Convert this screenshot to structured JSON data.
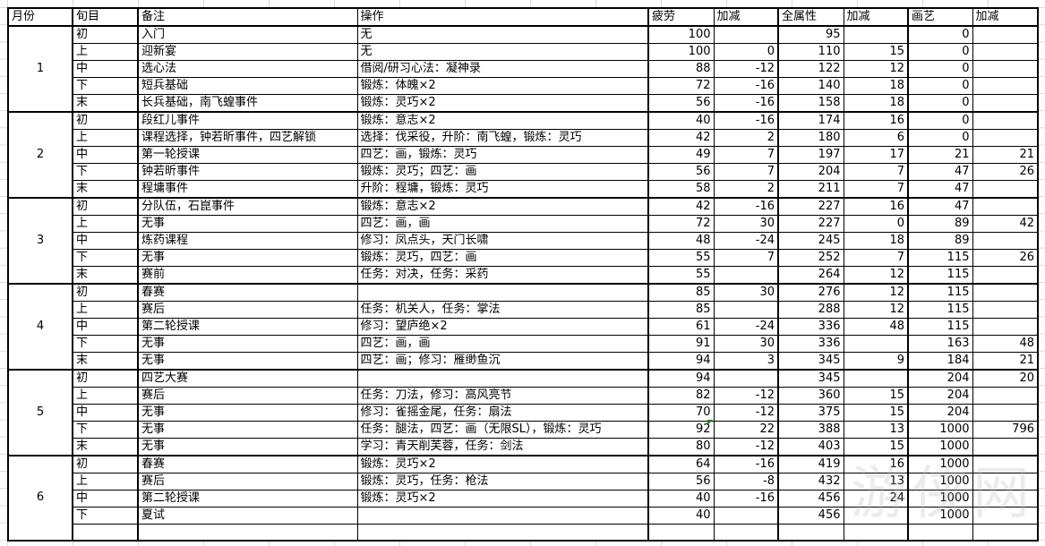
{
  "headers": [
    "月份",
    "旬目",
    "备注",
    "操作",
    "疲劳",
    "加减",
    "全属性",
    "加减",
    "画艺",
    "加减"
  ],
  "months": [
    {
      "month": "1",
      "rows": [
        [
          "初",
          "入门",
          "无",
          "100",
          "",
          "95",
          "",
          "0",
          ""
        ],
        [
          "上",
          "迎新宴",
          "无",
          "100",
          "0",
          "110",
          "15",
          "0",
          ""
        ],
        [
          "中",
          "选心法",
          "借阅/研习心法：凝神录",
          "88",
          "-12",
          "122",
          "12",
          "0",
          ""
        ],
        [
          "下",
          "短兵基础",
          "锻炼：体魄×2",
          "72",
          "-16",
          "140",
          "18",
          "0",
          ""
        ],
        [
          "末",
          "长兵基础，南飞蝗事件",
          "锻炼：灵巧×2",
          "56",
          "-16",
          "158",
          "18",
          "0",
          ""
        ]
      ]
    },
    {
      "month": "2",
      "rows": [
        [
          "初",
          "段红儿事件",
          "锻炼：意志×2",
          "40",
          "-16",
          "174",
          "16",
          "0",
          ""
        ],
        [
          "上",
          "课程选择，钟若昕事件，四艺解锁",
          "选择：伐采役，升阶：南飞蝗，锻炼：灵巧",
          "42",
          "2",
          "180",
          "6",
          "0",
          ""
        ],
        [
          "中",
          "第一轮授课",
          "四艺：画，锻炼：灵巧",
          "49",
          "7",
          "197",
          "17",
          "21",
          "21"
        ],
        [
          "下",
          "钟若昕事件",
          "锻炼：灵巧；四艺：画",
          "56",
          "7",
          "204",
          "7",
          "47",
          "26"
        ],
        [
          "末",
          "程墉事件",
          "升阶：程墉，锻炼：灵巧",
          "58",
          "2",
          "211",
          "7",
          "47",
          ""
        ]
      ]
    },
    {
      "month": "3",
      "rows": [
        [
          "初",
          "分队伍，石崑事件",
          "锻炼：意志×2",
          "42",
          "-16",
          "227",
          "16",
          "47",
          ""
        ],
        [
          "上",
          "无事",
          "四艺：画，画",
          "72",
          "30",
          "227",
          "0",
          "89",
          "42"
        ],
        [
          "中",
          "炼药课程",
          "修习：凤点头，天门长啸",
          "48",
          "-24",
          "245",
          "18",
          "89",
          ""
        ],
        [
          "下",
          "无事",
          "锻炼：灵巧，四艺：画",
          "55",
          "7",
          "252",
          "7",
          "115",
          "26"
        ],
        [
          "末",
          "赛前",
          "任务：对决，任务：采药",
          "55",
          "",
          "264",
          "12",
          "115",
          ""
        ]
      ]
    },
    {
      "month": "4",
      "rows": [
        [
          "初",
          "春赛",
          "",
          "85",
          "30",
          "276",
          "12",
          "115",
          ""
        ],
        [
          "上",
          "赛后",
          "任务：机关人，任务：掌法",
          "85",
          "",
          "288",
          "12",
          "115",
          ""
        ],
        [
          "中",
          "第二轮授课",
          "修习：望庐绝×2",
          "61",
          "-24",
          "336",
          "48",
          "115",
          ""
        ],
        [
          "下",
          "无事",
          "四艺：画，画",
          "91",
          "30",
          "336",
          "",
          "163",
          "48"
        ],
        [
          "末",
          "无事",
          "四艺：画；修习：雁缈鱼沉",
          "94",
          "3",
          "345",
          "9",
          "184",
          "21"
        ]
      ]
    },
    {
      "month": "5",
      "rows": [
        [
          "初",
          "四艺大赛",
          "",
          "94",
          "",
          "345",
          "",
          "204",
          "20"
        ],
        [
          "上",
          "赛后",
          "任务：刀法，修习：高风亮节",
          "82",
          "-12",
          "360",
          "15",
          "204",
          ""
        ],
        [
          "中",
          "无事",
          "修习：雀摇金尾，任务：扇法",
          "70",
          "-12",
          "375",
          "15",
          "204",
          ""
        ],
        [
          "下",
          "无事",
          "任务：腿法，四艺：画（无限SL），锻炼：灵巧",
          "92",
          "22",
          "388",
          "13",
          "1000",
          "796"
        ],
        [
          "末",
          "无事",
          "学习：青天削芙蓉，任务：剑法",
          "80",
          "-12",
          "403",
          "15",
          "1000",
          ""
        ]
      ]
    },
    {
      "month": "6",
      "rows": [
        [
          "初",
          "春赛",
          "锻炼：灵巧×2",
          "64",
          "-16",
          "419",
          "16",
          "1000",
          ""
        ],
        [
          "上",
          "赛后",
          "锻炼：灵巧，任务：枪法",
          "56",
          "-8",
          "432",
          "13",
          "1000",
          ""
        ],
        [
          "中",
          "第二轮授课",
          "锻炼：灵巧×2",
          "40",
          "-16",
          "456",
          "24",
          "1000",
          ""
        ],
        [
          "下",
          "夏试",
          "",
          "40",
          "",
          "456",
          "",
          "1000",
          ""
        ],
        [
          "",
          "",
          "",
          "",
          "",
          "",
          "",
          "",
          ""
        ]
      ]
    }
  ],
  "watermark": "游侠网"
}
